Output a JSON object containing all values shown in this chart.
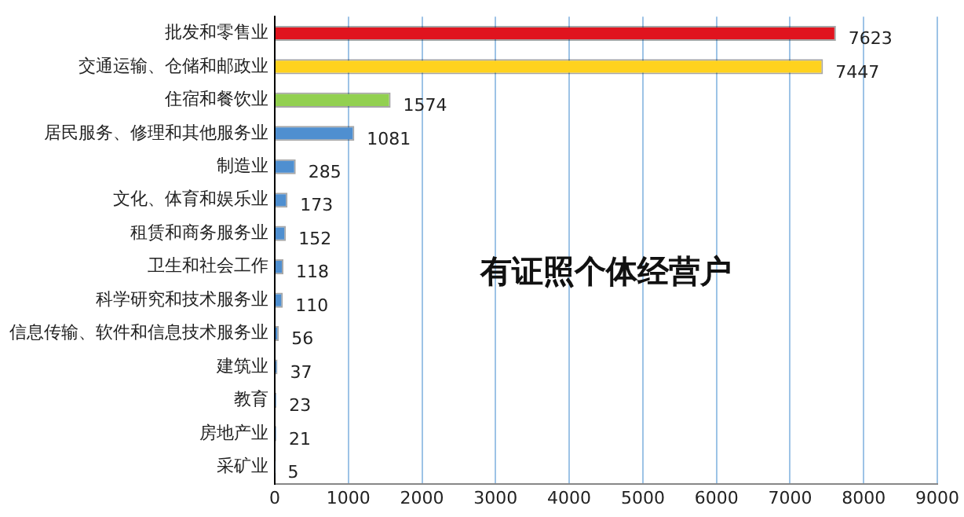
{
  "chart_data": {
    "type": "bar",
    "orientation": "horizontal",
    "categories": [
      "批发和零售业",
      "交通运输、仓储和邮政业",
      "住宿和餐饮业",
      "居民服务、修理和其他服务业",
      "制造业",
      "文化、体育和娱乐业",
      "租赁和商务服务业",
      "卫生和社会工作",
      "科学研究和技术服务业",
      "信息传输、软件和信息技术服务业",
      "建筑业",
      "教育",
      "房地产业",
      "采矿业"
    ],
    "values": [
      7623,
      7447,
      1574,
      1081,
      285,
      173,
      152,
      118,
      110,
      56,
      37,
      23,
      21,
      5
    ],
    "colors": [
      "#e0141e",
      "#ffd21e",
      "#92d050",
      "#4f8fd0",
      "#4f8fd0",
      "#4f8fd0",
      "#4f8fd0",
      "#4f8fd0",
      "#4f8fd0",
      "#4f8fd0",
      "#4f8fd0",
      "#4f8fd0",
      "#4f8fd0",
      "#4f8fd0"
    ],
    "xlim": [
      0,
      9000
    ],
    "xticks": [
      0,
      1000,
      2000,
      3000,
      4000,
      5000,
      6000,
      7000,
      8000,
      9000
    ],
    "grid": "x",
    "data_labels": true,
    "annotations": [
      "有证照个体经营户"
    ]
  }
}
